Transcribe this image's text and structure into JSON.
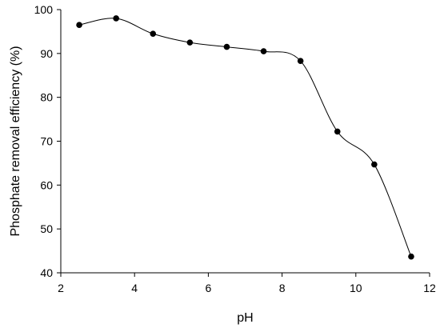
{
  "chart_data": {
    "type": "line",
    "title": "",
    "xlabel": "pH",
    "ylabel": "Phosphate removal efficiency (%)",
    "xlim": [
      2,
      12
    ],
    "ylim": [
      40,
      100
    ],
    "xticks": [
      2,
      4,
      6,
      8,
      10,
      12
    ],
    "yticks": [
      40,
      50,
      60,
      70,
      80,
      90,
      100
    ],
    "grid": false,
    "smooth": true,
    "marker": "circle",
    "colors": {
      "line": "#000000",
      "marker": "#000000"
    },
    "series": [
      {
        "x": [
          2.5,
          3.5,
          4.5,
          5.5,
          6.5,
          7.5,
          8.5,
          9.5,
          10.5,
          11.5
        ],
        "y": [
          96.5,
          98.0,
          94.5,
          92.5,
          91.5,
          90.5,
          88.3,
          72.2,
          64.7,
          43.7
        ]
      }
    ]
  }
}
